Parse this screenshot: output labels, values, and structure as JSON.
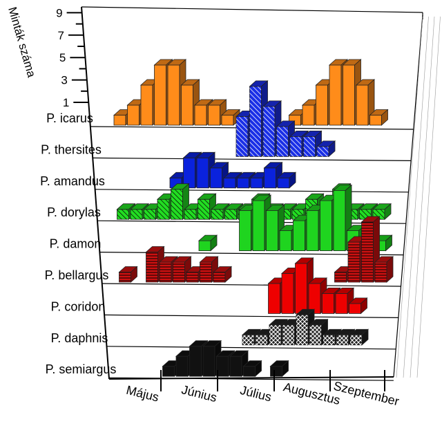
{
  "chart_data": {
    "type": "bar",
    "view": "3d-stacked-rows",
    "ylabel": "Minták száma",
    "y_ticks": [
      1,
      3,
      5,
      7,
      9
    ],
    "ylim": [
      0,
      9
    ],
    "months": [
      "Május",
      "Június",
      "Július",
      "Augusztus",
      "Szeptember"
    ],
    "x_unit": "week",
    "n_weeks": 20,
    "series": [
      {
        "name": "P. icarus",
        "color": "#ff8c1a",
        "pattern": "solid",
        "values": [
          1,
          2,
          4,
          6,
          6,
          4,
          2,
          2,
          1,
          0,
          0,
          0,
          0,
          1,
          2,
          4,
          6,
          6,
          4,
          1
        ]
      },
      {
        "name": "P. thersites",
        "color": "#1a2fe6",
        "pattern": "diag-white",
        "values": [
          0,
          0,
          0,
          0,
          0,
          0,
          0,
          0,
          0,
          4,
          7,
          5,
          3,
          2,
          2,
          1,
          0,
          0,
          0,
          0
        ]
      },
      {
        "name": "P. amandus",
        "color": "#0a22dd",
        "pattern": "solid",
        "values": [
          0,
          0,
          0,
          0,
          1,
          3,
          3,
          2,
          1,
          1,
          1,
          2,
          1,
          0,
          0,
          0,
          0,
          0,
          0,
          0
        ]
      },
      {
        "name": "P. dorylas",
        "color": "#22dd22",
        "pattern": "diag-black",
        "values": [
          1,
          1,
          1,
          2,
          3,
          1,
          2,
          1,
          1,
          1,
          2,
          1,
          1,
          1,
          2,
          1,
          3,
          1,
          1,
          1
        ]
      },
      {
        "name": "P. damon",
        "color": "#1fd41f",
        "pattern": "solid",
        "values": [
          0,
          0,
          0,
          0,
          0,
          0,
          1,
          0,
          0,
          4,
          5,
          4,
          2,
          3,
          4,
          5,
          6,
          2,
          1,
          1
        ]
      },
      {
        "name": "P. bellargus",
        "color": "#cc1111",
        "pattern": "hlines-black",
        "values": [
          1,
          0,
          3,
          2,
          2,
          1,
          2,
          1,
          0,
          0,
          0,
          0,
          0,
          0,
          0,
          0,
          1,
          4,
          6,
          2
        ]
      },
      {
        "name": "P. coridon",
        "color": "#ee0000",
        "pattern": "solid",
        "values": [
          0,
          0,
          0,
          0,
          0,
          0,
          0,
          0,
          0,
          0,
          0,
          3,
          4,
          5,
          3,
          2,
          2,
          1,
          0,
          0
        ]
      },
      {
        "name": "P. daphnis",
        "color": "#222222",
        "pattern": "crosshatch-white",
        "values": [
          0,
          0,
          0,
          0,
          0,
          0,
          0,
          0,
          0,
          1,
          1,
          2,
          2,
          3,
          2,
          1,
          1,
          1,
          0,
          0
        ]
      },
      {
        "name": "P. semiargus",
        "color": "#111111",
        "pattern": "solid",
        "values": [
          0,
          0,
          0,
          1,
          2,
          3,
          3,
          2,
          2,
          1,
          0,
          1,
          0,
          0,
          0,
          0,
          0,
          0,
          0,
          0
        ]
      }
    ]
  }
}
